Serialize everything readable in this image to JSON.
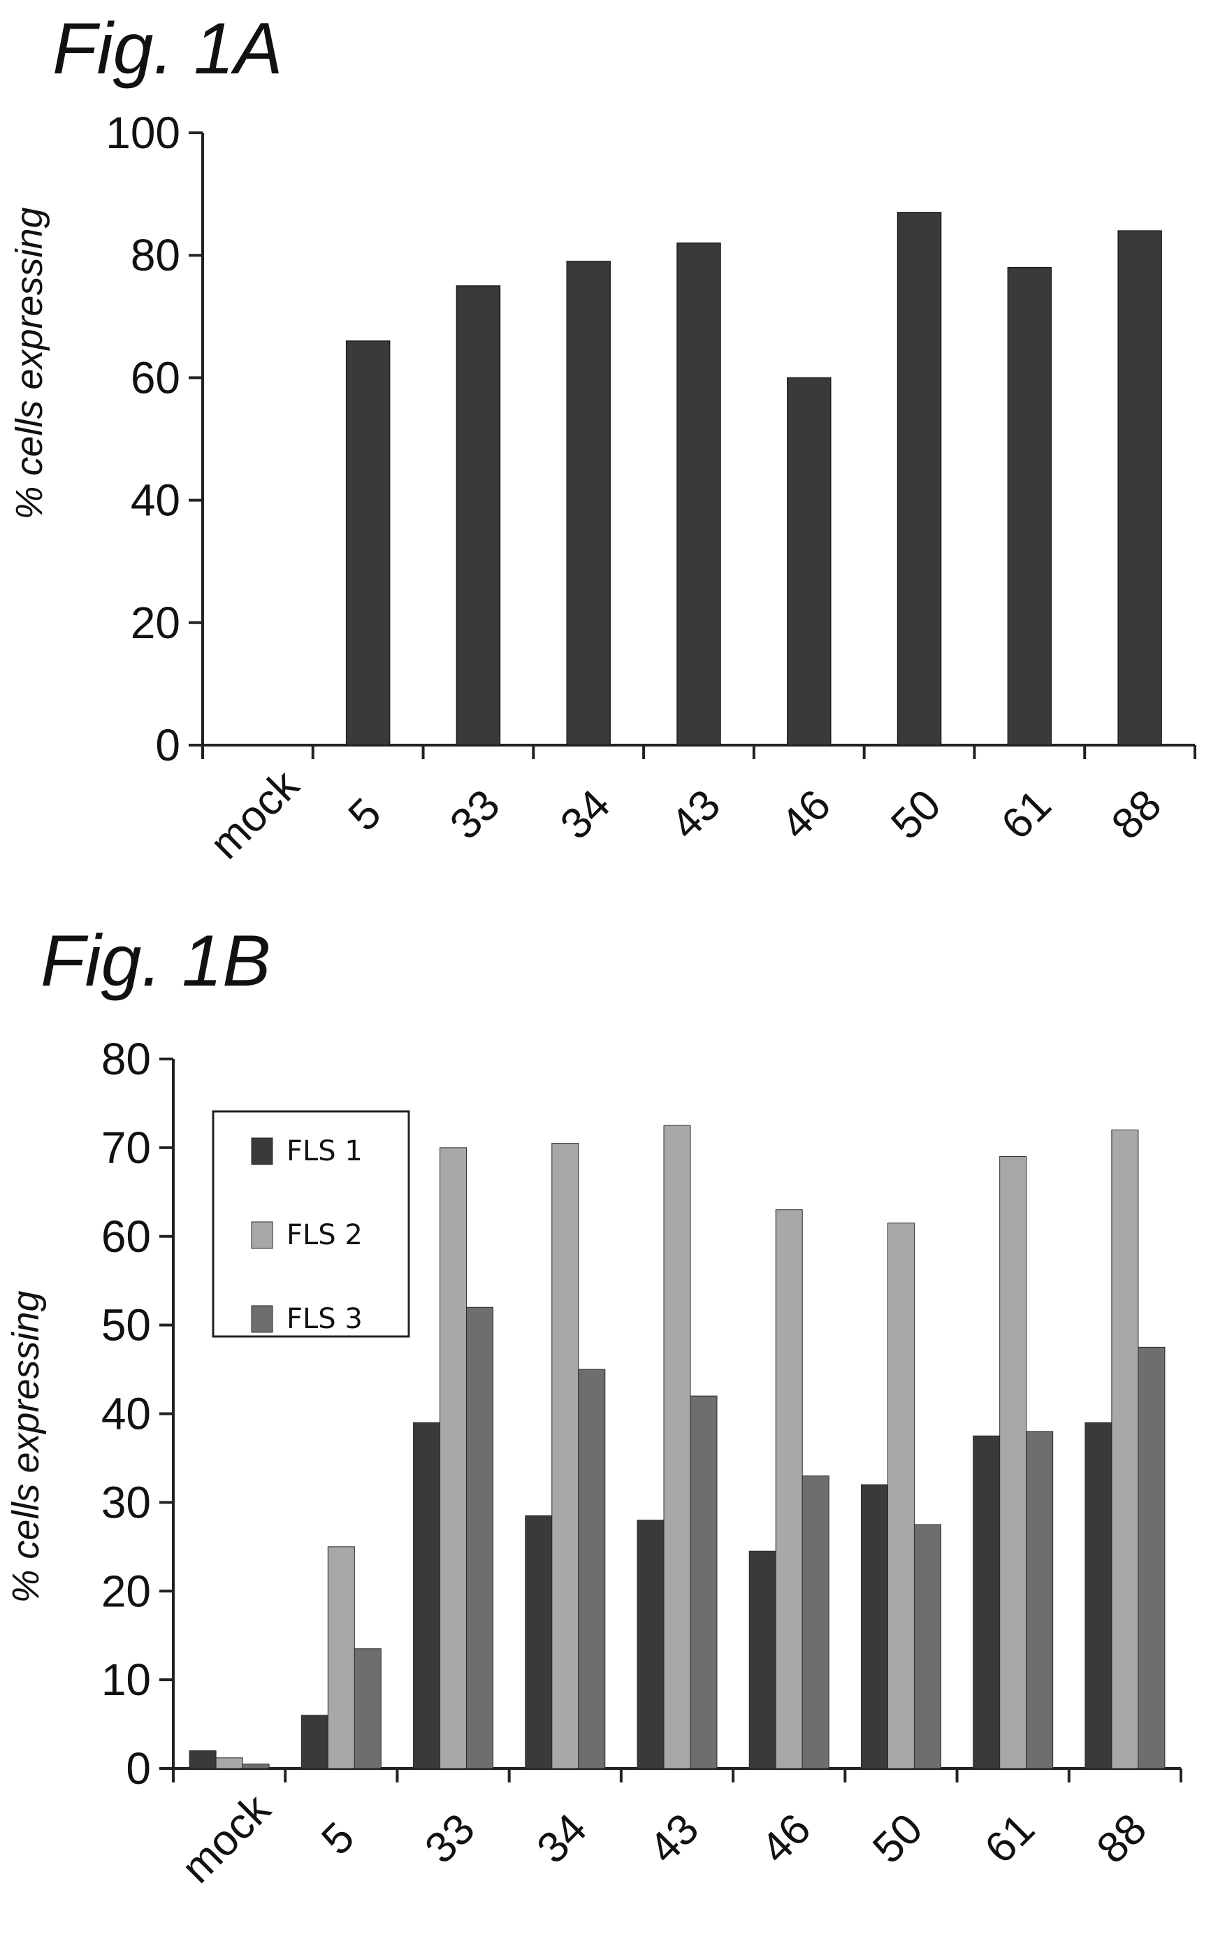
{
  "chart_data": [
    {
      "type": "bar",
      "title": "Fig. 1A",
      "xlabel": "",
      "ylabel": "% cells expressing",
      "ylim": [
        0,
        100
      ],
      "yticks": [
        0,
        20,
        40,
        60,
        80,
        100
      ],
      "categories": [
        "mock",
        "5",
        "33",
        "34",
        "43",
        "46",
        "50",
        "61",
        "88"
      ],
      "values": [
        0,
        66,
        75,
        79,
        82,
        60,
        87,
        78,
        84
      ],
      "colors": [
        "#3a3a3a"
      ],
      "legend": false,
      "grid": false
    },
    {
      "type": "bar",
      "title": "Fig. 1B",
      "xlabel": "",
      "ylabel": "% cells expressing",
      "ylim": [
        0,
        80
      ],
      "yticks": [
        0,
        10,
        20,
        30,
        40,
        50,
        60,
        70,
        80
      ],
      "categories": [
        "mock",
        "5",
        "33",
        "34",
        "43",
        "46",
        "50",
        "61",
        "88"
      ],
      "series": [
        {
          "name": "FLS 1",
          "color": "#3a3a3a",
          "values": [
            2,
            6,
            39,
            28.5,
            28,
            24.5,
            32,
            37.5,
            39
          ]
        },
        {
          "name": "FLS 2",
          "color": "#a8a8a8",
          "values": [
            1.2,
            25,
            70,
            70.5,
            72.5,
            63,
            61.5,
            69,
            72
          ]
        },
        {
          "name": "FLS 3",
          "color": "#6e6e6e",
          "values": [
            0.5,
            13.5,
            52,
            45,
            42,
            33,
            27.5,
            38,
            47.5
          ]
        }
      ],
      "legend": "top-left",
      "grid": false
    }
  ]
}
